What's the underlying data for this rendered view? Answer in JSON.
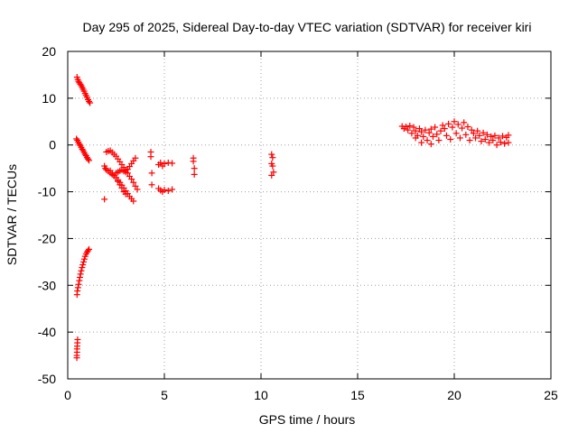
{
  "chart_data": {
    "type": "scatter",
    "title": "Day 295 of 2025, Sidereal Day-to-day VTEC variation (SDTVAR) for receiver kiri",
    "xlabel": "GPS time / hours",
    "ylabel": "SDTVAR / TECUs",
    "xlim": [
      0,
      25
    ],
    "ylim": [
      -50,
      20
    ],
    "xticks": [
      0,
      5,
      10,
      15,
      20,
      25
    ],
    "yticks": [
      -50,
      -40,
      -30,
      -20,
      -10,
      0,
      10,
      20
    ],
    "grid": true,
    "marker": "plus",
    "color": "#ff0000",
    "points": [
      [
        0.48,
        14.5
      ],
      [
        0.52,
        14.0
      ],
      [
        0.56,
        13.6
      ],
      [
        0.6,
        13.3
      ],
      [
        0.65,
        13.0
      ],
      [
        0.7,
        12.7
      ],
      [
        0.75,
        12.3
      ],
      [
        0.8,
        11.9
      ],
      [
        0.85,
        11.5
      ],
      [
        0.9,
        11.0
      ],
      [
        0.95,
        10.6
      ],
      [
        1.0,
        10.2
      ],
      [
        1.05,
        9.7
      ],
      [
        1.1,
        9.3
      ],
      [
        1.15,
        9.0
      ],
      [
        0.45,
        1.3
      ],
      [
        0.5,
        1.0
      ],
      [
        0.55,
        0.6
      ],
      [
        0.6,
        0.2
      ],
      [
        0.65,
        -0.1
      ],
      [
        0.7,
        -0.5
      ],
      [
        0.75,
        -0.9
      ],
      [
        0.8,
        -1.2
      ],
      [
        0.85,
        -1.6
      ],
      [
        0.9,
        -2.0
      ],
      [
        0.95,
        -2.3
      ],
      [
        1.0,
        -2.7
      ],
      [
        1.05,
        -3.0
      ],
      [
        1.1,
        -3.3
      ],
      [
        0.48,
        -32.0
      ],
      [
        0.5,
        -31.2
      ],
      [
        0.53,
        -30.5
      ],
      [
        0.56,
        -29.8
      ],
      [
        0.6,
        -29.0
      ],
      [
        0.63,
        -28.3
      ],
      [
        0.66,
        -27.6
      ],
      [
        0.7,
        -26.9
      ],
      [
        0.74,
        -26.2
      ],
      [
        0.78,
        -25.6
      ],
      [
        0.82,
        -25.0
      ],
      [
        0.86,
        -24.4
      ],
      [
        0.9,
        -23.8
      ],
      [
        0.95,
        -23.3
      ],
      [
        1.0,
        -22.9
      ],
      [
        1.05,
        -22.6
      ],
      [
        1.1,
        -22.3
      ],
      [
        0.47,
        -45.5
      ],
      [
        0.47,
        -45.0
      ],
      [
        0.48,
        -44.3
      ],
      [
        0.48,
        -43.6
      ],
      [
        0.49,
        -43.0
      ],
      [
        0.5,
        -42.3
      ],
      [
        0.51,
        -41.6
      ],
      [
        1.9,
        -11.6
      ],
      [
        1.9,
        -4.5
      ],
      [
        1.95,
        -5.0
      ],
      [
        2.0,
        -5.3
      ],
      [
        2.1,
        -5.6
      ],
      [
        2.2,
        -6.0
      ],
      [
        2.3,
        -6.3
      ],
      [
        2.4,
        -6.6
      ],
      [
        2.5,
        -7.0
      ],
      [
        2.6,
        -7.5
      ],
      [
        2.7,
        -8.0
      ],
      [
        2.8,
        -8.6
      ],
      [
        2.9,
        -9.2
      ],
      [
        3.0,
        -9.8
      ],
      [
        3.1,
        -10.4
      ],
      [
        2.0,
        -1.5
      ],
      [
        2.1,
        -1.3
      ],
      [
        2.2,
        -1.2
      ],
      [
        2.3,
        -1.6
      ],
      [
        2.4,
        -2.0
      ],
      [
        2.5,
        -2.4
      ],
      [
        2.6,
        -3.0
      ],
      [
        2.7,
        -3.6
      ],
      [
        2.8,
        -4.2
      ],
      [
        2.9,
        -4.8
      ],
      [
        3.0,
        -5.4
      ],
      [
        3.1,
        -6.0
      ],
      [
        3.2,
        -6.7
      ],
      [
        3.3,
        -7.3
      ],
      [
        3.4,
        -8.0
      ],
      [
        3.5,
        -8.8
      ],
      [
        3.6,
        -9.5
      ],
      [
        2.2,
        -5.5
      ],
      [
        2.3,
        -6.0
      ],
      [
        2.4,
        -6.5
      ],
      [
        2.5,
        -7.0
      ],
      [
        2.6,
        -7.8
      ],
      [
        2.7,
        -8.5
      ],
      [
        2.8,
        -9.2
      ],
      [
        2.9,
        -10.0
      ],
      [
        3.0,
        -10.5
      ],
      [
        3.2,
        -11.0
      ],
      [
        3.3,
        -11.5
      ],
      [
        3.4,
        -12.0
      ],
      [
        2.5,
        -6.0
      ],
      [
        2.6,
        -5.8
      ],
      [
        2.7,
        -5.5
      ],
      [
        2.8,
        -5.3
      ],
      [
        2.9,
        -5.6
      ],
      [
        3.0,
        -5.8
      ],
      [
        3.1,
        -5.2
      ],
      [
        3.2,
        -4.6
      ],
      [
        3.3,
        -4.0
      ],
      [
        3.4,
        -3.4
      ],
      [
        3.5,
        -2.8
      ],
      [
        4.3,
        -1.5
      ],
      [
        4.3,
        -2.5
      ],
      [
        4.35,
        -6.0
      ],
      [
        4.35,
        -8.5
      ],
      [
        4.7,
        -4.2
      ],
      [
        4.8,
        -3.8
      ],
      [
        4.9,
        -4.5
      ],
      [
        5.0,
        -4.0
      ],
      [
        5.2,
        -3.8
      ],
      [
        5.4,
        -3.9
      ],
      [
        4.7,
        -9.3
      ],
      [
        4.8,
        -9.7
      ],
      [
        4.9,
        -10.0
      ],
      [
        5.0,
        -9.6
      ],
      [
        5.2,
        -9.8
      ],
      [
        5.4,
        -9.5
      ],
      [
        6.5,
        -2.8
      ],
      [
        6.5,
        -3.5
      ],
      [
        6.55,
        -5.0
      ],
      [
        6.55,
        -6.3
      ],
      [
        10.55,
        -2.0
      ],
      [
        10.6,
        -2.7
      ],
      [
        10.55,
        -4.0
      ],
      [
        10.6,
        -4.5
      ],
      [
        10.65,
        -5.8
      ],
      [
        10.55,
        -6.5
      ],
      [
        17.3,
        4.0
      ],
      [
        17.4,
        3.5
      ],
      [
        17.5,
        3.9
      ],
      [
        17.6,
        3.2
      ],
      [
        17.7,
        4.1
      ],
      [
        17.8,
        2.5
      ],
      [
        17.9,
        3.8
      ],
      [
        18.0,
        1.5
      ],
      [
        18.0,
        3.0
      ],
      [
        18.1,
        2.0
      ],
      [
        18.2,
        3.5
      ],
      [
        18.3,
        0.5
      ],
      [
        18.3,
        2.8
      ],
      [
        18.4,
        1.8
      ],
      [
        18.5,
        3.2
      ],
      [
        18.6,
        1.0
      ],
      [
        18.7,
        2.6
      ],
      [
        18.8,
        0.2
      ],
      [
        18.8,
        3.4
      ],
      [
        18.9,
        1.8
      ],
      [
        19.0,
        3.8
      ],
      [
        19.1,
        2.3
      ],
      [
        19.2,
        1.0
      ],
      [
        19.3,
        3.0
      ],
      [
        19.4,
        4.2
      ],
      [
        19.5,
        3.5
      ],
      [
        19.6,
        2.0
      ],
      [
        19.7,
        4.5
      ],
      [
        19.8,
        1.2
      ],
      [
        19.9,
        3.8
      ],
      [
        20.0,
        5.0
      ],
      [
        20.1,
        2.5
      ],
      [
        20.2,
        4.4
      ],
      [
        20.3,
        1.5
      ],
      [
        20.4,
        3.6
      ],
      [
        20.5,
        4.8
      ],
      [
        20.6,
        2.2
      ],
      [
        20.7,
        3.9
      ],
      [
        20.8,
        1.0
      ],
      [
        20.9,
        3.2
      ],
      [
        21.0,
        2.5
      ],
      [
        21.1,
        1.5
      ],
      [
        21.2,
        3.0
      ],
      [
        21.3,
        2.0
      ],
      [
        21.4,
        0.8
      ],
      [
        21.5,
        2.6
      ],
      [
        21.6,
        1.2
      ],
      [
        21.7,
        2.2
      ],
      [
        21.8,
        0.5
      ],
      [
        21.9,
        1.8
      ],
      [
        22.0,
        1.0
      ],
      [
        22.1,
        2.0
      ],
      [
        22.2,
        0.0
      ],
      [
        22.3,
        1.5
      ],
      [
        22.4,
        0.6
      ],
      [
        22.5,
        1.9
      ],
      [
        22.6,
        0.3
      ],
      [
        22.7,
        1.6
      ],
      [
        22.8,
        2.1
      ],
      [
        22.8,
        0.5
      ]
    ]
  }
}
